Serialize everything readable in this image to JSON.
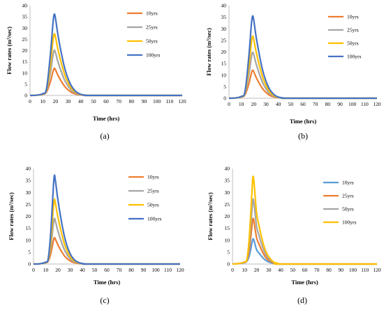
{
  "chart_data": [
    {
      "type": "line",
      "panel_label": "(a)",
      "xlabel": "Time (hrs)",
      "ylabel": "Flow rates (m³/sec)",
      "xlim": [
        0,
        120
      ],
      "ylim": [
        0,
        40
      ],
      "x_ticks": [
        0,
        10,
        20,
        30,
        40,
        50,
        60,
        70,
        80,
        90,
        100,
        110,
        120
      ],
      "y_ticks": [
        0,
        5,
        10,
        15,
        20,
        25,
        30,
        35,
        40
      ],
      "grid": false,
      "legend_position": "top-right",
      "series": [
        {
          "name": "10yrs",
          "color": "#ED7D31",
          "x": [
            0,
            5,
            10,
            13,
            16,
            18,
            19,
            20,
            22,
            25,
            28,
            32,
            36,
            40,
            45,
            50,
            120
          ],
          "y": [
            0,
            0.1,
            0.5,
            1.5,
            6.0,
            10.5,
            12.0,
            11.5,
            9.0,
            6.0,
            3.6,
            1.6,
            0.6,
            0.2,
            0.05,
            0,
            0
          ]
        },
        {
          "name": "25yrs",
          "color": "#A5A5A5",
          "x": [
            0,
            5,
            10,
            13,
            16,
            18,
            19,
            20,
            22,
            25,
            28,
            32,
            36,
            40,
            45,
            50,
            120
          ],
          "y": [
            0,
            0.1,
            0.6,
            2.0,
            10.0,
            17.5,
            20.0,
            19.2,
            15.0,
            10.0,
            6.0,
            2.7,
            1.0,
            0.3,
            0.05,
            0,
            0
          ]
        },
        {
          "name": "50yrs",
          "color": "#FFC000",
          "x": [
            0,
            5,
            10,
            13,
            16,
            18,
            19,
            20,
            22,
            25,
            28,
            32,
            36,
            40,
            45,
            50,
            120
          ],
          "y": [
            0,
            0.1,
            0.7,
            2.5,
            13.5,
            24.0,
            27.3,
            26.2,
            20.5,
            13.7,
            8.2,
            3.7,
            1.4,
            0.4,
            0.05,
            0,
            0
          ]
        },
        {
          "name": "100yrs",
          "color": "#4472C4",
          "x": [
            0,
            5,
            10,
            13,
            16,
            18,
            19,
            20,
            22,
            25,
            28,
            32,
            36,
            40,
            45,
            50,
            120
          ],
          "y": [
            0,
            0.1,
            0.8,
            3.0,
            18.0,
            31.5,
            36.0,
            34.6,
            27.0,
            18.0,
            10.8,
            4.9,
            1.8,
            0.5,
            0.05,
            0,
            0
          ]
        }
      ]
    },
    {
      "type": "line",
      "panel_label": "(b)",
      "xlabel": "Time (hrs)",
      "ylabel": "Flow rates (m³/sec)",
      "xlim": [
        0,
        120
      ],
      "ylim": [
        0,
        40
      ],
      "x_ticks": [
        0,
        10,
        20,
        30,
        40,
        50,
        60,
        70,
        80,
        90,
        100,
        110,
        120
      ],
      "y_ticks": [
        0,
        5,
        10,
        15,
        20,
        25,
        30,
        35,
        40
      ],
      "grid": false,
      "legend_position": "top-right",
      "series": [
        {
          "name": "10yrs",
          "color": "#ED7D31",
          "x": [
            0,
            5,
            10,
            13,
            16,
            18,
            19,
            20,
            22,
            25,
            28,
            32,
            36,
            40,
            45,
            50,
            120
          ],
          "y": [
            0,
            0.1,
            0.5,
            1.5,
            6.0,
            10.5,
            12.0,
            11.5,
            9.0,
            6.0,
            3.6,
            1.6,
            0.6,
            0.2,
            0.05,
            0,
            0
          ]
        },
        {
          "name": "25yrs",
          "color": "#A5A5A5",
          "x": [
            0,
            5,
            10,
            13,
            16,
            18,
            19,
            20,
            22,
            25,
            28,
            32,
            36,
            40,
            45,
            50,
            120
          ],
          "y": [
            0,
            0.1,
            0.6,
            2.0,
            9.8,
            17.3,
            19.7,
            19.0,
            14.8,
            9.9,
            5.9,
            2.6,
            1.0,
            0.3,
            0.05,
            0,
            0
          ]
        },
        {
          "name": "50yrs",
          "color": "#FFC000",
          "x": [
            0,
            5,
            10,
            13,
            16,
            18,
            19,
            20,
            22,
            25,
            28,
            32,
            36,
            40,
            45,
            50,
            120
          ],
          "y": [
            0,
            0.1,
            0.7,
            2.5,
            13.3,
            23.4,
            26.7,
            25.6,
            20.0,
            13.4,
            8.0,
            3.6,
            1.3,
            0.4,
            0.05,
            0,
            0
          ]
        },
        {
          "name": "100yrs",
          "color": "#4472C4",
          "x": [
            0,
            5,
            10,
            13,
            16,
            18,
            19,
            20,
            22,
            25,
            28,
            32,
            36,
            40,
            45,
            50,
            120
          ],
          "y": [
            0,
            0.1,
            0.8,
            3.0,
            17.6,
            31.0,
            35.3,
            34.0,
            26.5,
            17.7,
            10.6,
            4.8,
            1.8,
            0.5,
            0.05,
            0,
            0
          ]
        }
      ]
    },
    {
      "type": "line",
      "panel_label": "(c)",
      "xlabel": "Time (hrs)",
      "ylabel": "Flow rates (m³/sec)",
      "xlim": [
        0,
        120
      ],
      "ylim": [
        0,
        40
      ],
      "x_ticks": [
        0,
        10,
        20,
        30,
        40,
        50,
        60,
        70,
        80,
        90,
        100,
        110,
        120
      ],
      "y_ticks": [
        0,
        5,
        10,
        15,
        20,
        25,
        30,
        35,
        40
      ],
      "grid": false,
      "legend_position": "top-right",
      "series": [
        {
          "name": "10yrs",
          "color": "#ED7D31",
          "x": [
            0,
            5,
            10,
            12,
            14,
            16,
            17,
            18,
            20,
            23,
            26,
            30,
            34,
            38,
            42,
            48,
            120
          ],
          "y": [
            0,
            0.1,
            0.5,
            1.2,
            4.0,
            9.0,
            11.0,
            10.3,
            8.0,
            5.2,
            3.0,
            1.3,
            0.5,
            0.15,
            0.05,
            0,
            0
          ]
        },
        {
          "name": "25yrs",
          "color": "#A5A5A5",
          "x": [
            0,
            5,
            10,
            12,
            14,
            16,
            17,
            18,
            20,
            23,
            26,
            30,
            34,
            38,
            42,
            48,
            120
          ],
          "y": [
            0,
            0.1,
            0.6,
            1.5,
            6.5,
            15.5,
            19.0,
            17.8,
            13.8,
            9.0,
            5.2,
            2.2,
            0.8,
            0.25,
            0.05,
            0,
            0
          ]
        },
        {
          "name": "50yrs",
          "color": "#FFC000",
          "x": [
            0,
            5,
            10,
            12,
            14,
            16,
            17,
            18,
            20,
            23,
            26,
            30,
            34,
            38,
            42,
            48,
            120
          ],
          "y": [
            0,
            0.1,
            0.7,
            1.8,
            9.0,
            22.0,
            27.0,
            25.3,
            19.6,
            12.8,
            7.4,
            3.1,
            1.1,
            0.35,
            0.05,
            0,
            0
          ]
        },
        {
          "name": "100yrs",
          "color": "#4472C4",
          "x": [
            0,
            5,
            10,
            12,
            14,
            16,
            17,
            18,
            20,
            23,
            26,
            30,
            34,
            38,
            42,
            48,
            120
          ],
          "y": [
            0,
            0.1,
            0.8,
            2.2,
            12.5,
            30.0,
            37.0,
            34.7,
            26.8,
            17.5,
            10.1,
            4.3,
            1.5,
            0.45,
            0.05,
            0,
            0
          ]
        }
      ]
    },
    {
      "type": "line",
      "panel_label": "(d)",
      "xlabel": "Time (hrs)",
      "ylabel": "Flow rates (m³/sec)",
      "xlim": [
        0,
        120
      ],
      "ylim": [
        0,
        40
      ],
      "x_ticks": [
        0,
        10,
        20,
        30,
        40,
        50,
        60,
        70,
        80,
        90,
        100,
        110,
        120
      ],
      "y_ticks": [
        0,
        5,
        10,
        15,
        20,
        25,
        30,
        35,
        40
      ],
      "grid": false,
      "legend_position": "top-right",
      "series": [
        {
          "name": "10yrs",
          "color": "#5B9BD5",
          "x": [
            0,
            5,
            10,
            12,
            14,
            16,
            17,
            18,
            20,
            22,
            24,
            26,
            28,
            30,
            34,
            38,
            42,
            120
          ],
          "y": [
            0,
            0.2,
            0.6,
            1.2,
            3.5,
            8.5,
            10.5,
            9.6,
            6.0,
            4.6,
            3.3,
            2.2,
            1.4,
            0.9,
            0.3,
            0.1,
            0,
            0
          ]
        },
        {
          "name": "25yrs",
          "color": "#ED7D31",
          "x": [
            0,
            5,
            10,
            12,
            14,
            16,
            17,
            18,
            20,
            22,
            24,
            26,
            28,
            30,
            34,
            38,
            42,
            120
          ],
          "y": [
            0,
            0.2,
            0.7,
            1.5,
            6.0,
            15.0,
            19.0,
            17.4,
            11.0,
            8.4,
            6.0,
            4.0,
            2.5,
            1.6,
            0.5,
            0.15,
            0,
            0
          ]
        },
        {
          "name": "50yrs",
          "color": "#A5A5A5",
          "x": [
            0,
            5,
            10,
            12,
            14,
            16,
            17,
            18,
            20,
            22,
            24,
            26,
            28,
            30,
            34,
            38,
            42,
            120
          ],
          "y": [
            0,
            0.2,
            0.8,
            1.8,
            8.5,
            21.5,
            27.0,
            24.8,
            15.8,
            12.0,
            8.6,
            5.7,
            3.6,
            2.3,
            0.7,
            0.2,
            0,
            0
          ]
        },
        {
          "name": "100yrs",
          "color": "#FFC000",
          "x": [
            0,
            5,
            10,
            12,
            14,
            16,
            17,
            18,
            20,
            22,
            24,
            26,
            28,
            30,
            34,
            38,
            42,
            120
          ],
          "y": [
            0,
            0.2,
            0.9,
            2.1,
            11.5,
            29.0,
            36.5,
            33.5,
            21.3,
            16.2,
            11.6,
            7.7,
            4.9,
            3.1,
            0.9,
            0.25,
            0,
            0
          ]
        }
      ]
    }
  ]
}
